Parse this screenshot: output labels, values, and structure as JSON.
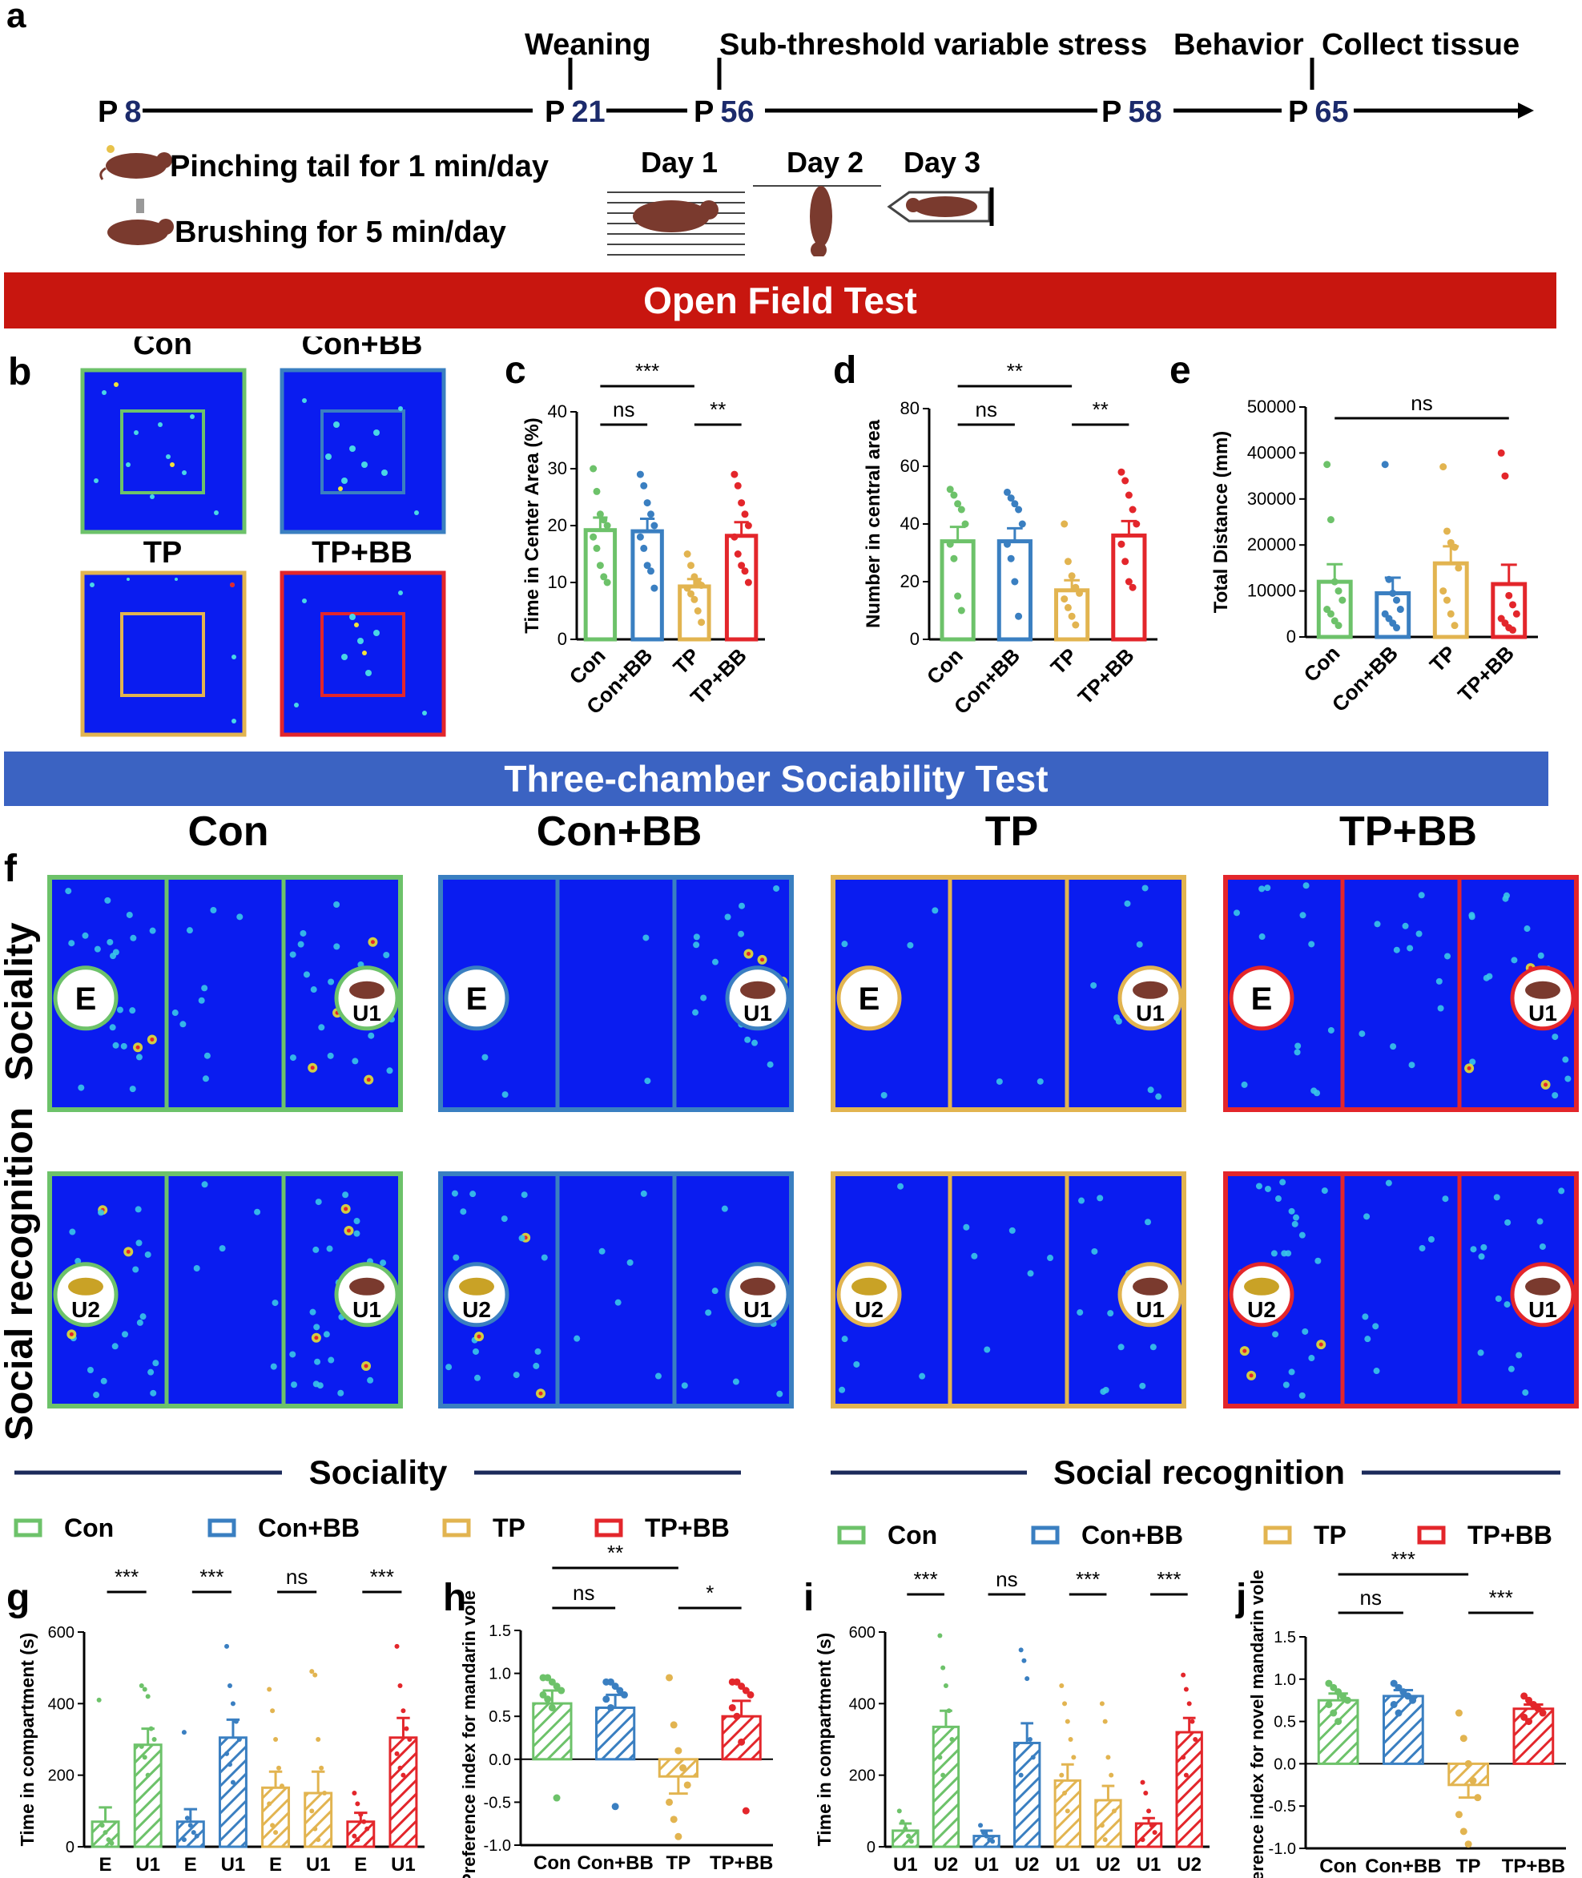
{
  "panel_letters": {
    "a": "a",
    "b": "b",
    "c": "c",
    "d": "d",
    "e": "e",
    "f": "f",
    "g": "g",
    "h": "h",
    "i": "i",
    "j": "j"
  },
  "timeline": {
    "events": [
      {
        "label": "Weaning"
      },
      {
        "label": "Sub-threshold variable stress"
      },
      {
        "label": "Behavior"
      },
      {
        "label": "Collect tissue"
      }
    ],
    "points": [
      {
        "prefix": "P",
        "day": "8"
      },
      {
        "prefix": "P",
        "day": "21"
      },
      {
        "prefix": "P",
        "day": "56"
      },
      {
        "prefix": "P",
        "day": "58"
      },
      {
        "prefix": "P",
        "day": "65"
      }
    ],
    "treatments": [
      "Pinching tail for 1 min/day",
      "Brushing for 5 min/day"
    ],
    "days": [
      "Day 1",
      "Day 2",
      "Day 3"
    ]
  },
  "banners": {
    "open_field": "Open Field Test",
    "three_chamber": "Three-chamber Sociability Test"
  },
  "groups": [
    "Con",
    "Con+BB",
    "TP",
    "TP+BB"
  ],
  "colors": {
    "Con": "#6dc26a",
    "Con+BB": "#3a7fc1",
    "TP": "#e2b450",
    "TP+BB": "#e3262b",
    "heat_bg": "#0a1cf0",
    "mouse": "#7a3a2e",
    "mouse_u2": "#c9a226",
    "banner_red": "#c8160f",
    "banner_blue": "#3b63c2",
    "section_line": "#1b2a5a"
  },
  "panel_f": {
    "rows": [
      "Sociality",
      "Social recognition"
    ],
    "sociality_markers": [
      "E",
      "U1"
    ],
    "recognition_markers": [
      "U2",
      "U1"
    ]
  },
  "section_headers": [
    "Sociality",
    "Social recognition"
  ],
  "chart_data": [
    {
      "id": "c",
      "type": "bar",
      "categories": [
        "Con",
        "Con+BB",
        "TP",
        "TP+BB"
      ],
      "values": [
        19.2,
        19.0,
        9.3,
        18.2
      ],
      "sem": [
        2.2,
        2.2,
        1.3,
        2.4
      ],
      "ylabel": "Time in Center Area (%)",
      "ylim": [
        0,
        40
      ],
      "yticks": [
        "0",
        "10",
        "20",
        "30",
        "40"
      ],
      "points": [
        [
          30,
          26,
          22,
          21,
          20,
          18,
          16,
          13,
          11,
          10
        ],
        [
          29,
          27,
          24,
          22,
          20,
          18,
          16,
          13,
          12,
          9
        ],
        [
          15,
          13,
          11,
          10,
          9.5,
          9,
          8,
          7,
          5,
          3
        ],
        [
          29,
          27,
          24,
          22,
          20,
          18,
          15,
          13,
          12,
          10
        ]
      ],
      "significance": [
        {
          "label": "***",
          "from": 0,
          "to": 2
        },
        {
          "label": "ns",
          "from": 0,
          "to": 1
        },
        {
          "label": "**",
          "from": 2,
          "to": 3
        }
      ]
    },
    {
      "id": "d",
      "type": "bar",
      "categories": [
        "Con",
        "Con+BB",
        "TP",
        "TP+BB"
      ],
      "values": [
        34,
        34,
        17,
        36
      ],
      "sem": [
        5,
        4.5,
        3.5,
        5
      ],
      "ylabel": "Number in central area",
      "ylim": [
        0,
        80
      ],
      "yticks": [
        "0",
        "20",
        "40",
        "60",
        "80"
      ],
      "points": [
        [
          52,
          50,
          47,
          45,
          40,
          33,
          28,
          15,
          10
        ],
        [
          51,
          49,
          47,
          45,
          40,
          33,
          28,
          20,
          8
        ],
        [
          40,
          27,
          22,
          18,
          16,
          14,
          11,
          8,
          5
        ],
        [
          58,
          55,
          50,
          45,
          40,
          33,
          27,
          20,
          18
        ]
      ],
      "significance": [
        {
          "label": "**",
          "from": 0,
          "to": 2
        },
        {
          "label": "ns",
          "from": 0,
          "to": 1
        },
        {
          "label": "**",
          "from": 2,
          "to": 3
        }
      ]
    },
    {
      "id": "e",
      "type": "bar",
      "categories": [
        "Con",
        "Con+BB",
        "TP",
        "TP+BB"
      ],
      "values": [
        12000,
        9500,
        16000,
        11500
      ],
      "sem": [
        3800,
        3400,
        3700,
        4200
      ],
      "ylabel": "Total Distance (mm)",
      "ylim": [
        0,
        50000
      ],
      "yticks": [
        "0",
        "10000",
        "20000",
        "30000",
        "40000",
        "50000"
      ],
      "points": [
        [
          37500,
          25500,
          12000,
          10000,
          8000,
          6000,
          5000,
          3500,
          2500
        ],
        [
          37500,
          12500,
          9500,
          8000,
          6000,
          5000,
          4000,
          3000,
          2000
        ],
        [
          37000,
          23000,
          20500,
          19500,
          15000,
          10000,
          8000,
          5000,
          2500
        ],
        [
          40000,
          35000,
          9000,
          7000,
          5000,
          4000,
          3000,
          2000,
          1500
        ]
      ],
      "significance": [
        {
          "label": "ns",
          "from": 0,
          "to": 3
        }
      ]
    },
    {
      "id": "g",
      "type": "bar",
      "categories": [
        "E",
        "U1",
        "E",
        "U1",
        "E",
        "U1",
        "E",
        "U1"
      ],
      "values": [
        70,
        285,
        70,
        305,
        165,
        150,
        70,
        305
      ],
      "sem": [
        40,
        45,
        35,
        50,
        45,
        60,
        25,
        55
      ],
      "ylabel": "Time in compartment (s)",
      "ylim": [
        0,
        600
      ],
      "yticks": [
        "0",
        "200",
        "400",
        "600"
      ],
      "series": [
        "Con",
        "Con",
        "Con+BB",
        "Con+BB",
        "TP",
        "TP",
        "TP+BB",
        "TP+BB"
      ],
      "points": [
        [
          410,
          60,
          40,
          20,
          10
        ],
        [
          450,
          440,
          420,
          330,
          300,
          280,
          250,
          200
        ],
        [
          320,
          80,
          60,
          40,
          30,
          20
        ],
        [
          560,
          450,
          400,
          350,
          300,
          260,
          230,
          180
        ],
        [
          440,
          380,
          300,
          220,
          170,
          120,
          60,
          40
        ],
        [
          490,
          480,
          300,
          220,
          150,
          100,
          50,
          20
        ],
        [
          150,
          120,
          90,
          70,
          50,
          30,
          20
        ],
        [
          560,
          450,
          380,
          330,
          300,
          260,
          220,
          200
        ]
      ],
      "significance": [
        {
          "label": "***",
          "from": 0,
          "to": 1
        },
        {
          "label": "***",
          "from": 2,
          "to": 3
        },
        {
          "label": "ns",
          "from": 4,
          "to": 5
        },
        {
          "label": "***",
          "from": 6,
          "to": 7
        }
      ]
    },
    {
      "id": "h",
      "type": "bar",
      "categories": [
        "Con",
        "Con+BB",
        "TP",
        "TP+BB"
      ],
      "values": [
        0.65,
        0.6,
        -0.2,
        0.5
      ],
      "sem": [
        0.15,
        0.15,
        0.2,
        0.18
      ],
      "ylabel": "Preference index for mandarin vole",
      "ylim": [
        -1.0,
        1.5
      ],
      "yticks": [
        "-1.0",
        "-0.5",
        "0.0",
        "0.5",
        "1.0",
        "1.5"
      ],
      "points": [
        [
          0.95,
          0.95,
          0.9,
          0.85,
          0.8,
          0.75,
          0.7,
          0.6,
          -0.45
        ],
        [
          0.9,
          0.9,
          0.85,
          0.8,
          0.75,
          0.7,
          0.6,
          -0.55
        ],
        [
          0.95,
          0.4,
          0.1,
          -0.1,
          -0.3,
          -0.5,
          -0.7,
          -0.9
        ],
        [
          0.9,
          0.9,
          0.85,
          0.8,
          0.75,
          0.6,
          0.5,
          0.2,
          -0.6
        ]
      ],
      "significance": [
        {
          "label": "**",
          "from": 0,
          "to": 2
        },
        {
          "label": "ns",
          "from": 0,
          "to": 1
        },
        {
          "label": "*",
          "from": 2,
          "to": 3
        }
      ]
    },
    {
      "id": "i",
      "type": "bar",
      "categories": [
        "U1",
        "U2",
        "U1",
        "U2",
        "U1",
        "U2",
        "U1",
        "U2"
      ],
      "values": [
        45,
        335,
        30,
        290,
        185,
        130,
        65,
        320
      ],
      "sem": [
        20,
        45,
        15,
        55,
        45,
        40,
        15,
        40
      ],
      "ylabel": "Time in compartment (s)",
      "ylim": [
        0,
        600
      ],
      "yticks": [
        "0",
        "200",
        "400",
        "600"
      ],
      "series": [
        "Con",
        "Con",
        "Con+BB",
        "Con+BB",
        "TP",
        "TP",
        "TP+BB",
        "TP+BB"
      ],
      "points": [
        [
          100,
          70,
          50,
          30,
          15
        ],
        [
          590,
          500,
          450,
          380,
          300,
          250,
          200
        ],
        [
          60,
          40,
          30,
          20,
          15
        ],
        [
          550,
          520,
          470,
          300,
          250,
          200
        ],
        [
          450,
          400,
          350,
          300,
          250,
          200,
          150,
          100
        ],
        [
          400,
          350,
          250,
          200,
          100,
          60,
          20
        ],
        [
          180,
          150,
          100,
          60,
          40,
          20
        ],
        [
          480,
          440,
          400,
          350,
          300,
          250,
          200
        ]
      ],
      "significance": [
        {
          "label": "***",
          "from": 0,
          "to": 1
        },
        {
          "label": "ns",
          "from": 2,
          "to": 3
        },
        {
          "label": "***",
          "from": 4,
          "to": 5
        },
        {
          "label": "***",
          "from": 6,
          "to": 7
        }
      ]
    },
    {
      "id": "j",
      "type": "bar",
      "categories": [
        "Con",
        "Con+BB",
        "TP",
        "TP+BB"
      ],
      "values": [
        0.75,
        0.8,
        -0.25,
        0.65
      ],
      "sem": [
        0.08,
        0.07,
        0.15,
        0.05
      ],
      "ylabel": "Preference index for novel mandarin vole",
      "ylim": [
        -1.0,
        1.5
      ],
      "yticks": [
        "-1.0",
        "-0.5",
        "0.0",
        "0.5",
        "1.0",
        "1.5"
      ],
      "points": [
        [
          0.95,
          0.9,
          0.85,
          0.8,
          0.75,
          0.7,
          0.6,
          0.5
        ],
        [
          0.95,
          0.9,
          0.85,
          0.8,
          0.75,
          0.7,
          0.6
        ],
        [
          0.6,
          0.3,
          0.0,
          -0.2,
          -0.4,
          -0.6,
          -0.8,
          -0.95
        ],
        [
          0.8,
          0.75,
          0.7,
          0.65,
          0.6,
          0.55,
          0.5
        ]
      ],
      "significance": [
        {
          "label": "***",
          "from": 0,
          "to": 2
        },
        {
          "label": "ns",
          "from": 0,
          "to": 1
        },
        {
          "label": "***",
          "from": 2,
          "to": 3
        }
      ]
    }
  ]
}
